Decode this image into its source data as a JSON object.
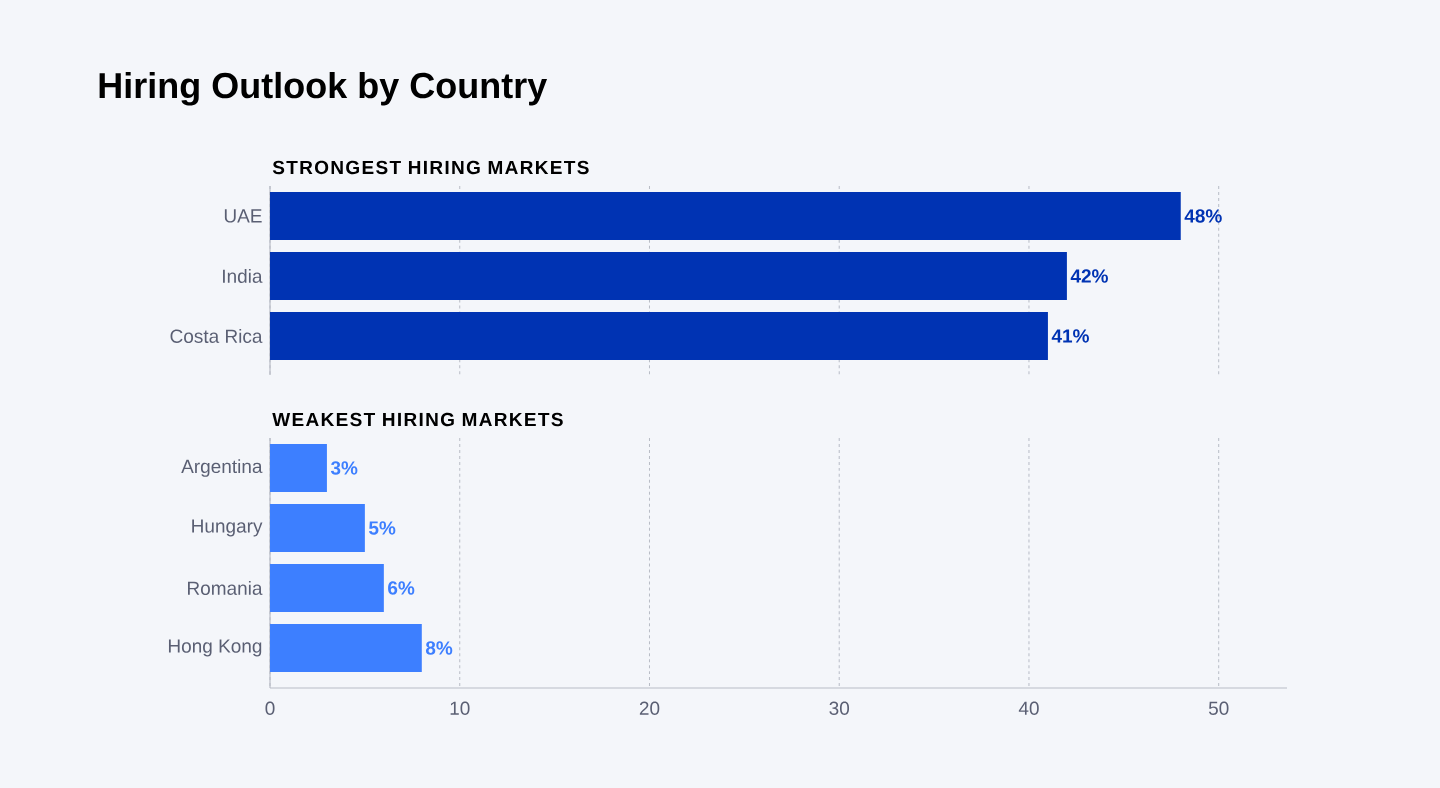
{
  "chart_data": [
    {
      "type": "bar",
      "orientation": "horizontal",
      "title": "Hiring Outlook by Country",
      "subtitle": "STRONGEST HIRING MARKETS",
      "categories": [
        "UAE",
        "India",
        "Costa Rica"
      ],
      "values": [
        48,
        42,
        41
      ],
      "value_labels": [
        "48%",
        "42%",
        "41%"
      ],
      "color": "#0033b3",
      "xticks": [
        0,
        10,
        20,
        30,
        40,
        50
      ],
      "tick_labels": "y",
      "grid": "x"
    },
    {
      "type": "bar",
      "orientation": "horizontal",
      "title": "WEAKEST HIRING MARKETS",
      "categories": [
        "Argentina",
        "Hungary",
        "Romania",
        "Hong Kong"
      ],
      "values": [
        3,
        5,
        6,
        8
      ],
      "value_labels": [
        "3%",
        "5%",
        "6%",
        "8%"
      ],
      "color": "#3d7fff",
      "xlim": [
        0,
        53.6
      ],
      "xticks": [
        0,
        10,
        20,
        30,
        40,
        50
      ],
      "grid": "x"
    }
  ]
}
